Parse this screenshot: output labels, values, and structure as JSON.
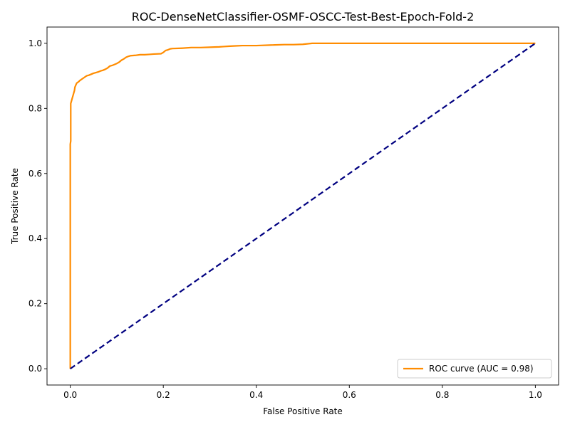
{
  "chart_data": {
    "type": "line",
    "title": "ROC-DenseNetClassifier-OSMF-OSCC-Test-Best-Epoch-Fold-2",
    "xlabel": "False Positive Rate",
    "ylabel": "True Positive Rate",
    "xlim": [
      -0.05,
      1.05
    ],
    "ylim": [
      -0.05,
      1.05
    ],
    "xticks": [
      0.0,
      0.2,
      0.4,
      0.6,
      0.8,
      1.0
    ],
    "yticks": [
      0.0,
      0.2,
      0.4,
      0.6,
      0.8,
      1.0
    ],
    "xtick_labels": [
      "0.0",
      "0.2",
      "0.4",
      "0.6",
      "0.8",
      "1.0"
    ],
    "ytick_labels": [
      "0.0",
      "0.2",
      "0.4",
      "0.6",
      "0.8",
      "1.0"
    ],
    "grid": false,
    "legend_position": "lower-right",
    "series": [
      {
        "name": "ROC curve (AUC = 0.98)",
        "color": "#ff8c00",
        "style": "solid",
        "x": [
          0.0,
          0.0,
          0.001,
          0.001,
          0.003,
          0.004,
          0.006,
          0.007,
          0.009,
          0.01,
          0.012,
          0.014,
          0.016,
          0.018,
          0.02,
          0.025,
          0.03,
          0.035,
          0.04,
          0.045,
          0.05,
          0.055,
          0.06,
          0.065,
          0.07,
          0.075,
          0.08,
          0.085,
          0.09,
          0.095,
          0.1,
          0.105,
          0.11,
          0.115,
          0.12,
          0.125,
          0.13,
          0.14,
          0.15,
          0.16,
          0.17,
          0.18,
          0.195,
          0.2,
          0.205,
          0.21,
          0.215,
          0.22,
          0.24,
          0.26,
          0.28,
          0.3,
          0.32,
          0.33,
          0.34,
          0.355,
          0.37,
          0.4,
          0.44,
          0.46,
          0.48,
          0.5,
          0.52,
          0.55,
          0.6,
          0.7,
          0.8,
          0.9,
          1.0
        ],
        "y": [
          0.0,
          0.69,
          0.7,
          0.815,
          0.825,
          0.83,
          0.84,
          0.845,
          0.855,
          0.865,
          0.872,
          0.878,
          0.88,
          0.882,
          0.885,
          0.89,
          0.895,
          0.9,
          0.902,
          0.905,
          0.908,
          0.91,
          0.912,
          0.915,
          0.917,
          0.92,
          0.924,
          0.93,
          0.932,
          0.935,
          0.938,
          0.942,
          0.948,
          0.952,
          0.957,
          0.96,
          0.962,
          0.963,
          0.965,
          0.965,
          0.966,
          0.967,
          0.968,
          0.972,
          0.978,
          0.98,
          0.983,
          0.984,
          0.985,
          0.987,
          0.987,
          0.988,
          0.989,
          0.99,
          0.991,
          0.992,
          0.993,
          0.993,
          0.995,
          0.996,
          0.996,
          0.997,
          1.0,
          1.0,
          1.0,
          1.0,
          1.0,
          1.0,
          1.0
        ]
      },
      {
        "name": "",
        "color": "#000080",
        "style": "dashed",
        "x": [
          0.0,
          1.0
        ],
        "y": [
          0.0,
          1.0
        ]
      }
    ]
  }
}
